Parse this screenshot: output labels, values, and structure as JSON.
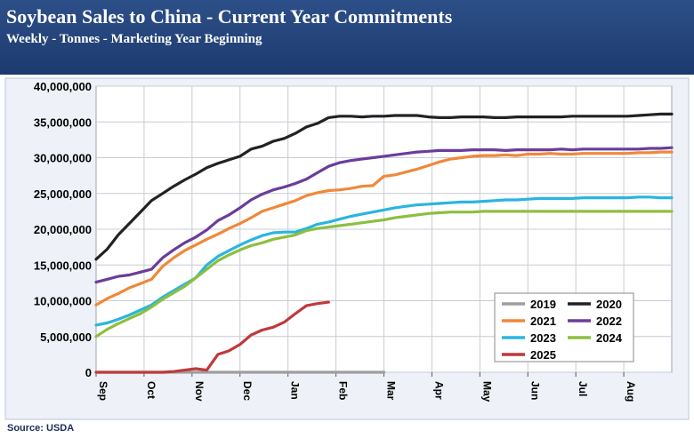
{
  "header": {
    "title": "Soybean Sales to China - Current Year Commitments",
    "subtitle": "Weekly - Tonnes - Marketing Year Beginning"
  },
  "source": "Source: USDA",
  "chart_data": {
    "type": "line",
    "title": "Soybean Sales to China - Current Year Commitments",
    "subtitle": "Weekly - Tonnes - Marketing Year Beginning",
    "xlabel": "",
    "ylabel": "",
    "ylim": [
      0,
      40000000
    ],
    "yticks": [
      0,
      5000000,
      10000000,
      15000000,
      20000000,
      25000000,
      30000000,
      35000000,
      40000000
    ],
    "ytick_labels": [
      "0",
      "5,000,000",
      "10,000,000",
      "15,000,000",
      "20,000,000",
      "25,000,000",
      "30,000,000",
      "35,000,000",
      "40,000,000"
    ],
    "x_months": [
      "Sep",
      "Oct",
      "Nov",
      "Dec",
      "Jan",
      "Feb",
      "Mar",
      "Apr",
      "May",
      "Jun",
      "Jul",
      "Aug"
    ],
    "xlim": [
      0,
      52
    ],
    "grid": true,
    "legend_position": "bottom-right",
    "series": [
      {
        "name": "2019",
        "color": "#9e9e9e",
        "points": [
          [
            0,
            0
          ],
          [
            26,
            0
          ]
        ]
      },
      {
        "name": "2020",
        "color": "#222222",
        "points": [
          [
            0,
            15800000
          ],
          [
            1,
            17200000
          ],
          [
            2,
            19200000
          ],
          [
            3,
            20800000
          ],
          [
            4,
            22400000
          ],
          [
            5,
            24000000
          ],
          [
            6,
            25000000
          ],
          [
            7,
            26000000
          ],
          [
            8,
            26900000
          ],
          [
            9,
            27700000
          ],
          [
            10,
            28600000
          ],
          [
            11,
            29200000
          ],
          [
            12,
            29700000
          ],
          [
            13,
            30200000
          ],
          [
            14,
            31200000
          ],
          [
            15,
            31600000
          ],
          [
            16,
            32300000
          ],
          [
            17,
            32700000
          ],
          [
            18,
            33400000
          ],
          [
            19,
            34300000
          ],
          [
            20,
            34800000
          ],
          [
            21,
            35600000
          ],
          [
            22,
            35800000
          ],
          [
            23,
            35800000
          ],
          [
            24,
            35700000
          ],
          [
            25,
            35800000
          ],
          [
            26,
            35800000
          ],
          [
            27,
            35900000
          ],
          [
            28,
            35900000
          ],
          [
            29,
            35900000
          ],
          [
            30,
            35700000
          ],
          [
            31,
            35600000
          ],
          [
            32,
            35600000
          ],
          [
            33,
            35700000
          ],
          [
            34,
            35700000
          ],
          [
            35,
            35700000
          ],
          [
            36,
            35600000
          ],
          [
            37,
            35600000
          ],
          [
            38,
            35700000
          ],
          [
            39,
            35700000
          ],
          [
            40,
            35700000
          ],
          [
            41,
            35700000
          ],
          [
            42,
            35700000
          ],
          [
            43,
            35800000
          ],
          [
            44,
            35800000
          ],
          [
            45,
            35800000
          ],
          [
            46,
            35800000
          ],
          [
            47,
            35800000
          ],
          [
            48,
            35800000
          ],
          [
            49,
            35900000
          ],
          [
            50,
            36000000
          ],
          [
            51,
            36100000
          ],
          [
            52,
            36100000
          ]
        ]
      },
      {
        "name": "2021",
        "color": "#f0883a",
        "points": [
          [
            0,
            9400000
          ],
          [
            1,
            10300000
          ],
          [
            2,
            11000000
          ],
          [
            3,
            11800000
          ],
          [
            4,
            12400000
          ],
          [
            5,
            13000000
          ],
          [
            6,
            14800000
          ],
          [
            7,
            16000000
          ],
          [
            8,
            17000000
          ],
          [
            9,
            17800000
          ],
          [
            10,
            18600000
          ],
          [
            11,
            19300000
          ],
          [
            12,
            20100000
          ],
          [
            13,
            20800000
          ],
          [
            14,
            21600000
          ],
          [
            15,
            22500000
          ],
          [
            16,
            23000000
          ],
          [
            17,
            23500000
          ],
          [
            18,
            24000000
          ],
          [
            19,
            24700000
          ],
          [
            20,
            25100000
          ],
          [
            21,
            25400000
          ],
          [
            22,
            25500000
          ],
          [
            23,
            25700000
          ],
          [
            24,
            26000000
          ],
          [
            25,
            26100000
          ],
          [
            26,
            27400000
          ],
          [
            27,
            27600000
          ],
          [
            28,
            28000000
          ],
          [
            29,
            28400000
          ],
          [
            30,
            28900000
          ],
          [
            31,
            29400000
          ],
          [
            32,
            29800000
          ],
          [
            33,
            30000000
          ],
          [
            34,
            30200000
          ],
          [
            35,
            30300000
          ],
          [
            36,
            30300000
          ],
          [
            37,
            30400000
          ],
          [
            38,
            30300000
          ],
          [
            39,
            30500000
          ],
          [
            40,
            30500000
          ],
          [
            41,
            30600000
          ],
          [
            42,
            30500000
          ],
          [
            43,
            30500000
          ],
          [
            44,
            30600000
          ],
          [
            45,
            30600000
          ],
          [
            46,
            30600000
          ],
          [
            47,
            30600000
          ],
          [
            48,
            30600000
          ],
          [
            49,
            30700000
          ],
          [
            50,
            30700000
          ],
          [
            51,
            30800000
          ],
          [
            52,
            30800000
          ]
        ]
      },
      {
        "name": "2022",
        "color": "#6a3d9a",
        "points": [
          [
            0,
            12600000
          ],
          [
            1,
            13000000
          ],
          [
            2,
            13400000
          ],
          [
            3,
            13600000
          ],
          [
            4,
            14000000
          ],
          [
            5,
            14400000
          ],
          [
            6,
            16000000
          ],
          [
            7,
            17100000
          ],
          [
            8,
            18100000
          ],
          [
            9,
            18900000
          ],
          [
            10,
            19900000
          ],
          [
            11,
            21200000
          ],
          [
            12,
            22000000
          ],
          [
            13,
            23000000
          ],
          [
            14,
            24100000
          ],
          [
            15,
            24900000
          ],
          [
            16,
            25500000
          ],
          [
            17,
            25900000
          ],
          [
            18,
            26400000
          ],
          [
            19,
            27000000
          ],
          [
            20,
            27900000
          ],
          [
            21,
            28800000
          ],
          [
            22,
            29300000
          ],
          [
            23,
            29600000
          ],
          [
            24,
            29800000
          ],
          [
            25,
            30000000
          ],
          [
            26,
            30200000
          ],
          [
            27,
            30400000
          ],
          [
            28,
            30600000
          ],
          [
            29,
            30800000
          ],
          [
            30,
            30900000
          ],
          [
            31,
            31000000
          ],
          [
            32,
            31000000
          ],
          [
            33,
            31000000
          ],
          [
            34,
            31100000
          ],
          [
            35,
            31100000
          ],
          [
            36,
            31100000
          ],
          [
            37,
            31000000
          ],
          [
            38,
            31100000
          ],
          [
            39,
            31100000
          ],
          [
            40,
            31100000
          ],
          [
            41,
            31100000
          ],
          [
            42,
            31200000
          ],
          [
            43,
            31100000
          ],
          [
            44,
            31200000
          ],
          [
            45,
            31200000
          ],
          [
            46,
            31200000
          ],
          [
            47,
            31200000
          ],
          [
            48,
            31200000
          ],
          [
            49,
            31200000
          ],
          [
            50,
            31300000
          ],
          [
            51,
            31300000
          ],
          [
            52,
            31400000
          ]
        ]
      },
      {
        "name": "2023",
        "color": "#2ab5e0",
        "points": [
          [
            0,
            6600000
          ],
          [
            1,
            6900000
          ],
          [
            2,
            7400000
          ],
          [
            3,
            8000000
          ],
          [
            4,
            8700000
          ],
          [
            5,
            9400000
          ],
          [
            6,
            10500000
          ],
          [
            7,
            11400000
          ],
          [
            8,
            12300000
          ],
          [
            9,
            13200000
          ],
          [
            10,
            15000000
          ],
          [
            11,
            16200000
          ],
          [
            12,
            17000000
          ],
          [
            13,
            17800000
          ],
          [
            14,
            18500000
          ],
          [
            15,
            19100000
          ],
          [
            16,
            19500000
          ],
          [
            17,
            19600000
          ],
          [
            18,
            19600000
          ],
          [
            19,
            20100000
          ],
          [
            20,
            20700000
          ],
          [
            21,
            21000000
          ],
          [
            22,
            21400000
          ],
          [
            23,
            21800000
          ],
          [
            24,
            22100000
          ],
          [
            25,
            22400000
          ],
          [
            26,
            22700000
          ],
          [
            27,
            23000000
          ],
          [
            28,
            23200000
          ],
          [
            29,
            23400000
          ],
          [
            30,
            23500000
          ],
          [
            31,
            23600000
          ],
          [
            32,
            23700000
          ],
          [
            33,
            23800000
          ],
          [
            34,
            23800000
          ],
          [
            35,
            23900000
          ],
          [
            36,
            24000000
          ],
          [
            37,
            24100000
          ],
          [
            38,
            24100000
          ],
          [
            39,
            24200000
          ],
          [
            40,
            24300000
          ],
          [
            41,
            24300000
          ],
          [
            42,
            24300000
          ],
          [
            43,
            24300000
          ],
          [
            44,
            24400000
          ],
          [
            45,
            24400000
          ],
          [
            46,
            24400000
          ],
          [
            47,
            24400000
          ],
          [
            48,
            24400000
          ],
          [
            49,
            24500000
          ],
          [
            50,
            24500000
          ],
          [
            51,
            24400000
          ],
          [
            52,
            24400000
          ]
        ]
      },
      {
        "name": "2024",
        "color": "#8cbf3f",
        "points": [
          [
            0,
            5000000
          ],
          [
            1,
            6000000
          ],
          [
            2,
            6800000
          ],
          [
            3,
            7500000
          ],
          [
            4,
            8200000
          ],
          [
            5,
            9100000
          ],
          [
            6,
            10200000
          ],
          [
            7,
            11100000
          ],
          [
            8,
            12000000
          ],
          [
            9,
            13200000
          ],
          [
            10,
            14400000
          ],
          [
            11,
            15600000
          ],
          [
            12,
            16400000
          ],
          [
            13,
            17100000
          ],
          [
            14,
            17700000
          ],
          [
            15,
            18100000
          ],
          [
            16,
            18600000
          ],
          [
            17,
            18900000
          ],
          [
            18,
            19200000
          ],
          [
            19,
            19800000
          ],
          [
            20,
            20100000
          ],
          [
            21,
            20300000
          ],
          [
            22,
            20500000
          ],
          [
            23,
            20700000
          ],
          [
            24,
            20900000
          ],
          [
            25,
            21100000
          ],
          [
            26,
            21300000
          ],
          [
            27,
            21600000
          ],
          [
            28,
            21800000
          ],
          [
            29,
            22000000
          ],
          [
            30,
            22200000
          ],
          [
            31,
            22300000
          ],
          [
            32,
            22400000
          ],
          [
            33,
            22400000
          ],
          [
            34,
            22400000
          ],
          [
            35,
            22500000
          ],
          [
            36,
            22500000
          ],
          [
            37,
            22500000
          ],
          [
            38,
            22500000
          ],
          [
            39,
            22500000
          ],
          [
            40,
            22500000
          ],
          [
            41,
            22500000
          ],
          [
            42,
            22500000
          ],
          [
            43,
            22500000
          ],
          [
            44,
            22500000
          ],
          [
            45,
            22500000
          ],
          [
            46,
            22500000
          ],
          [
            47,
            22500000
          ],
          [
            48,
            22500000
          ],
          [
            49,
            22500000
          ],
          [
            50,
            22500000
          ],
          [
            51,
            22500000
          ],
          [
            52,
            22500000
          ]
        ]
      },
      {
        "name": "2025",
        "color": "#c0393b",
        "points": [
          [
            0,
            0
          ],
          [
            1,
            0
          ],
          [
            2,
            0
          ],
          [
            3,
            0
          ],
          [
            4,
            0
          ],
          [
            5,
            0
          ],
          [
            6,
            0
          ],
          [
            7,
            100000
          ],
          [
            8,
            300000
          ],
          [
            9,
            500000
          ],
          [
            10,
            300000
          ],
          [
            11,
            2500000
          ],
          [
            12,
            3000000
          ],
          [
            13,
            3900000
          ],
          [
            14,
            5200000
          ],
          [
            15,
            5900000
          ],
          [
            16,
            6300000
          ],
          [
            17,
            7000000
          ],
          [
            18,
            8200000
          ],
          [
            19,
            9300000
          ],
          [
            20,
            9600000
          ],
          [
            21,
            9800000
          ]
        ]
      }
    ]
  }
}
